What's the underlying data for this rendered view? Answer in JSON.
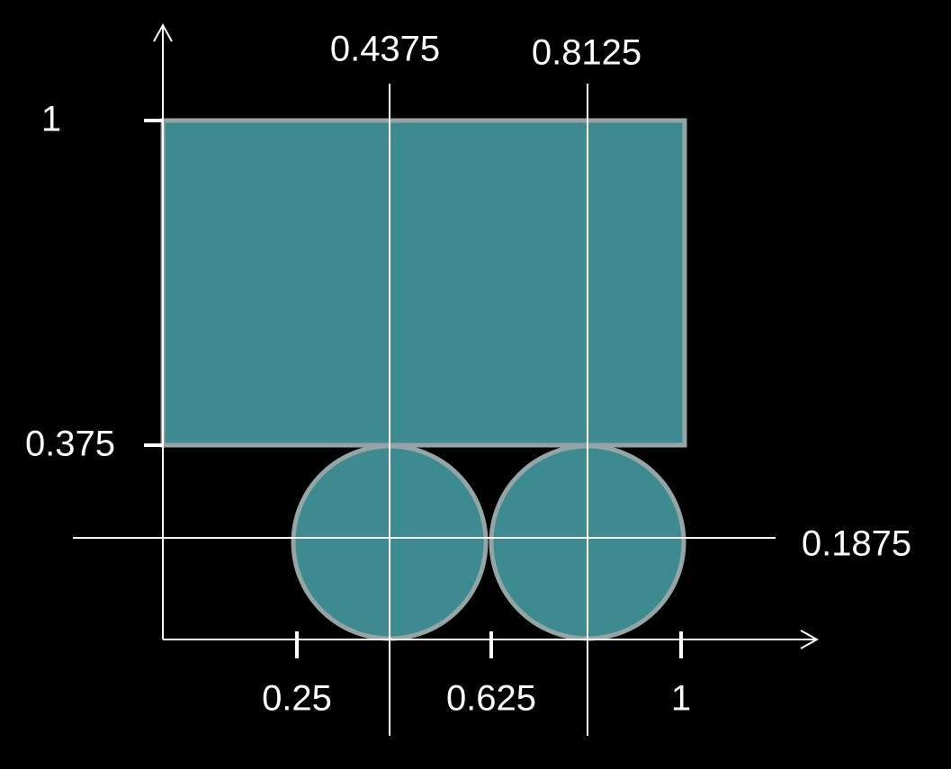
{
  "x_ticks": [
    0.25,
    0.625,
    1
  ],
  "y_ticks": [
    1,
    0.375
  ],
  "vertical_lines": [
    0.4375,
    0.8125
  ],
  "horizontal_line": 0.1875
}
